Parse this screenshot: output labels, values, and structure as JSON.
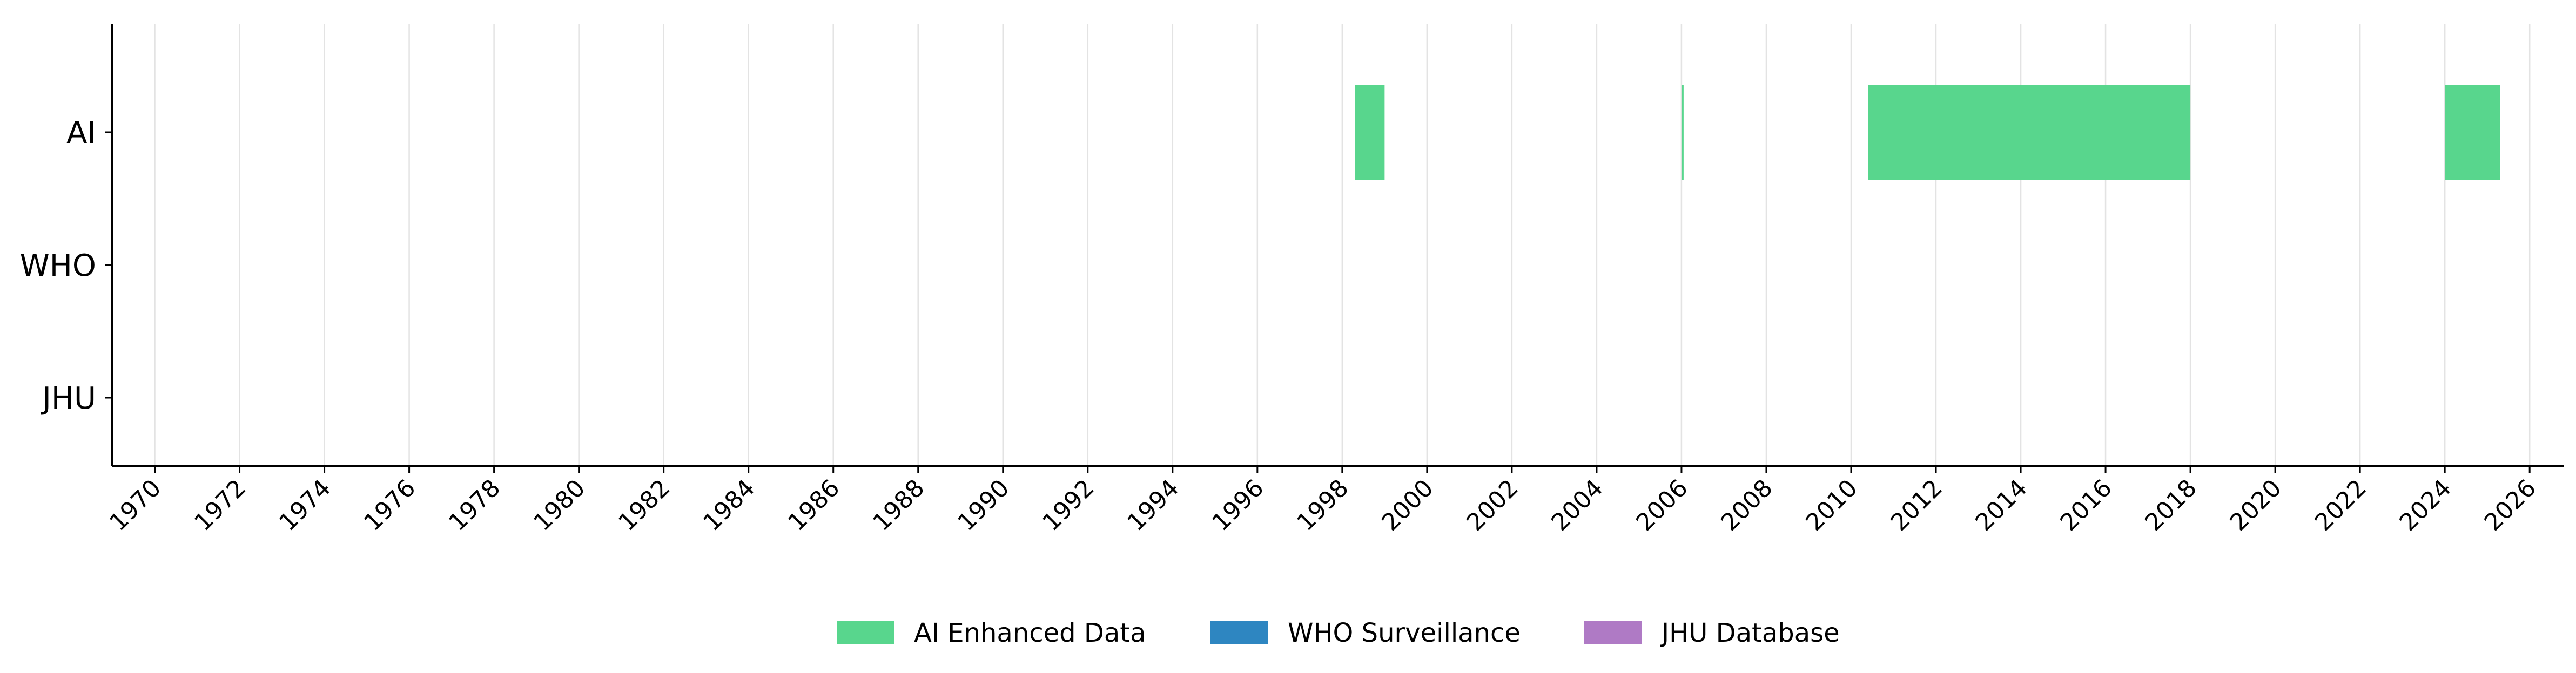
{
  "chart_data": {
    "type": "timeline",
    "categories": [
      "AI",
      "WHO",
      "JHU"
    ],
    "xlim": [
      1969.0,
      2026.8
    ],
    "x_ticks": [
      1970,
      1972,
      1974,
      1976,
      1978,
      1980,
      1982,
      1984,
      1986,
      1988,
      1990,
      1992,
      1994,
      1996,
      1998,
      2000,
      2002,
      2004,
      2006,
      2008,
      2010,
      2012,
      2014,
      2016,
      2018,
      2020,
      2022,
      2024,
      2026
    ],
    "grid": "vertical",
    "legend_placement": "bottom-center",
    "series": [
      {
        "name": "AI Enhanced Data",
        "category": "AI",
        "color": "#58d68d",
        "intervals": [
          [
            1998.3,
            1999.0
          ],
          [
            2006.0,
            2006.05
          ],
          [
            2010.4,
            2018.0
          ],
          [
            2024.0,
            2025.3
          ]
        ]
      },
      {
        "name": "WHO Surveillance",
        "category": "WHO",
        "color": "#2e86c1",
        "intervals": []
      },
      {
        "name": "JHU Database",
        "category": "JHU",
        "color": "#af7ac5",
        "intervals": []
      }
    ]
  }
}
